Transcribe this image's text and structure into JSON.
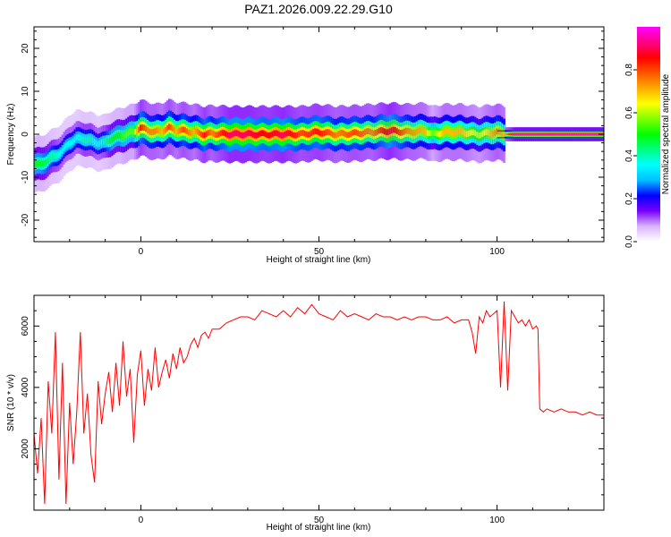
{
  "title": "PAZ1.2026.009.22.29.G10",
  "chart_data": [
    {
      "type": "heatmap",
      "xlabel": "Height of straight line (km)",
      "ylabel": "Frequency (Hz)",
      "xlim": [
        -30,
        130
      ],
      "ylim": [
        -25,
        25
      ],
      "xticks": [
        0,
        50,
        100
      ],
      "yticks": [
        -20,
        -10,
        0,
        10,
        20
      ],
      "colorbar": {
        "label": "Normalized spectral amplitude",
        "range": [
          0,
          1
        ],
        "ticks": [
          "0.0",
          "0.2",
          "0.4",
          "0.6",
          "0.8"
        ],
        "colormap": [
          "#ffffff",
          "#d8b4ff",
          "#7a00ff",
          "#0000ff",
          "#00bfff",
          "#00ffff",
          "#00ff80",
          "#00ff00",
          "#80ff00",
          "#ffff00",
          "#ffaa00",
          "#ff5500",
          "#ff0000",
          "#ff0088",
          "#ff00ff"
        ]
      },
      "ridge": {
        "height_km": [
          -28,
          -26,
          -24,
          -22,
          -20,
          -18,
          -16,
          -14,
          -12,
          -10,
          -8,
          -6,
          -4,
          -2,
          0,
          2,
          4,
          6,
          8,
          10,
          12,
          15,
          18,
          20,
          25,
          30,
          35,
          40,
          45,
          50,
          55,
          60,
          65,
          70,
          75,
          80,
          82,
          85,
          90,
          95,
          100,
          102,
          105,
          110,
          115,
          120,
          125,
          130
        ],
        "frequency_hz": [
          -7,
          -6,
          -5,
          -4,
          -2,
          -1,
          -1,
          -1.5,
          -2,
          -2,
          -1,
          -0.5,
          0,
          0.5,
          1.5,
          1,
          0.5,
          0.8,
          1.5,
          1,
          0.8,
          0.5,
          0,
          0.2,
          0,
          0,
          0,
          0,
          0,
          0.5,
          0,
          0.2,
          0.5,
          0.8,
          0.5,
          0.8,
          0,
          0.5,
          0.5,
          0,
          0.5,
          0,
          0,
          0,
          0,
          0,
          0,
          0
        ],
        "peak_amplitude": [
          0.5,
          0.45,
          0.4,
          0.35,
          0.35,
          0.35,
          0.4,
          0.4,
          0.35,
          0.4,
          0.5,
          0.5,
          0.55,
          0.55,
          0.85,
          0.75,
          0.75,
          0.7,
          0.8,
          0.7,
          0.8,
          0.7,
          0.85,
          0.75,
          0.9,
          0.9,
          0.85,
          0.9,
          0.8,
          0.85,
          0.75,
          0.8,
          0.75,
          0.9,
          0.75,
          0.7,
          0.55,
          0.7,
          0.7,
          0.6,
          0.75,
          0.7,
          1.0,
          1.0,
          1.0,
          1.0,
          1.0,
          1.0
        ]
      }
    },
    {
      "type": "line",
      "xlabel": "Height of straight line (km)",
      "ylabel": "SNR (10 * v/v)",
      "xlim": [
        -30,
        130
      ],
      "ylim": [
        0,
        7000
      ],
      "xticks": [
        0,
        50,
        100
      ],
      "yticks": [
        2000,
        4000,
        6000
      ],
      "series": [
        {
          "color": "#ff0000",
          "x": [
            -30,
            -29,
            -28,
            -27,
            -26,
            -25,
            -24,
            -23,
            -22,
            -21,
            -20,
            -19,
            -18,
            -17,
            -16,
            -15,
            -14,
            -13,
            -12,
            -11,
            -10,
            -9,
            -8,
            -7,
            -6,
            -5,
            -4,
            -3,
            -2,
            -1,
            0,
            1,
            2,
            3,
            4,
            5,
            6,
            7,
            8,
            9,
            10,
            11,
            12,
            13,
            14,
            15,
            16,
            17,
            18,
            19,
            20,
            22,
            24,
            26,
            28,
            30,
            32,
            34,
            36,
            38,
            40,
            42,
            44,
            46,
            48,
            50,
            52,
            54,
            56,
            58,
            60,
            62,
            64,
            66,
            68,
            70,
            72,
            74,
            76,
            78,
            80,
            82,
            84,
            86,
            88,
            90,
            92,
            93,
            94,
            95,
            96,
            97,
            98,
            99,
            100,
            101,
            102,
            103,
            104,
            105,
            106,
            107,
            108,
            109,
            110,
            111,
            111.5,
            112,
            113,
            114,
            116,
            118,
            120,
            122,
            124,
            126,
            128,
            130
          ],
          "y": [
            2500,
            1200,
            3000,
            200,
            4200,
            2500,
            5800,
            1000,
            4800,
            200,
            3500,
            1500,
            3200,
            5800,
            2500,
            3800,
            1800,
            900,
            4200,
            2800,
            3800,
            4500,
            3200,
            4800,
            3400,
            5500,
            3700,
            4600,
            2200,
            4400,
            5200,
            3400,
            4600,
            3900,
            5300,
            4000,
            4500,
            4900,
            4300,
            5100,
            4600,
            5300,
            4800,
            5000,
            5400,
            5600,
            5300,
            5700,
            5800,
            5600,
            5900,
            5900,
            6100,
            6200,
            6300,
            6300,
            6200,
            6500,
            6400,
            6300,
            6500,
            6300,
            6600,
            6400,
            6700,
            6400,
            6300,
            6200,
            6500,
            6300,
            6400,
            6300,
            6200,
            6400,
            6300,
            6300,
            6200,
            6300,
            6200,
            6300,
            6300,
            6200,
            6200,
            6300,
            6100,
            6200,
            6200,
            5800,
            5100,
            6300,
            6100,
            6500,
            6300,
            6400,
            6500,
            4000,
            6800,
            3900,
            6500,
            6300,
            6100,
            6200,
            6000,
            6200,
            5900,
            6000,
            5900,
            3300,
            3200,
            3300,
            3200,
            3300,
            3200,
            3200,
            3100,
            3200,
            3100,
            3100
          ]
        }
      ]
    }
  ]
}
